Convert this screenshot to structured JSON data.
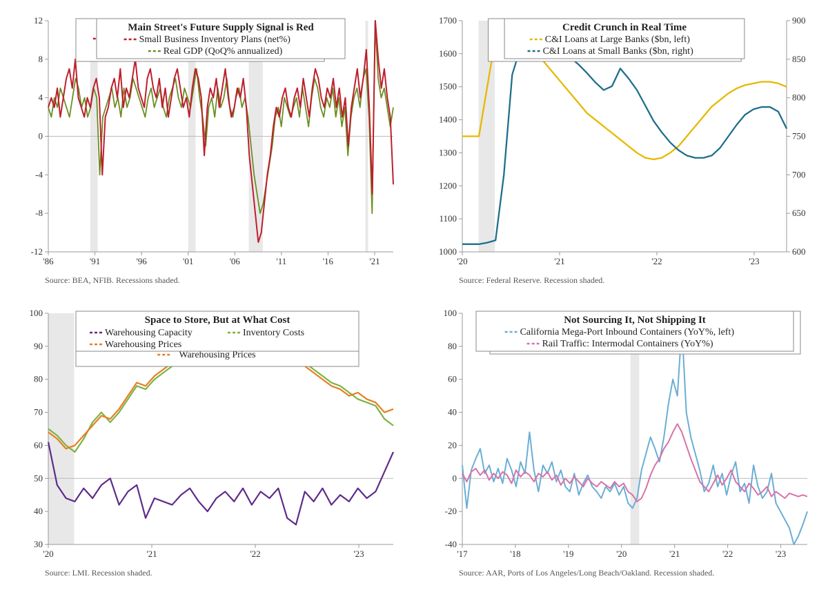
{
  "chart1": {
    "type": "line",
    "title": "Main Street's Future Supply Signal is Red",
    "legend": [
      {
        "label": "Small Business Inventory Plans (net%)",
        "color": "#be1e2d",
        "dash": "4,3"
      },
      {
        "label": "Real GDP (QoQ% annualized)",
        "color": "#6b8e23",
        "dash": "4,3"
      }
    ],
    "x_ticks": [
      "'86",
      "'91",
      "'96",
      "'01",
      "'06",
      "'11",
      "'16",
      "'21"
    ],
    "y_ticks": [
      -12,
      -8,
      -4,
      0,
      4,
      8,
      12
    ],
    "ylim": [
      -12,
      12
    ],
    "xlim": [
      0,
      37
    ],
    "recessions": [
      [
        4.5,
        5.3
      ],
      [
        15,
        15.8
      ],
      [
        21.5,
        23
      ],
      [
        34,
        34.3
      ]
    ],
    "series1_color": "#be1e2d",
    "series2_color": "#6b8e23",
    "grid_color": "#cccccc",
    "axis_color": "#999",
    "bg": "#ffffff",
    "title_fontsize": 15,
    "legend_fontsize": 14,
    "tick_fontsize": 13,
    "source": "Source: BEA, NFIB. Recessions shaded.",
    "s1": [
      3,
      4,
      3,
      5,
      2,
      4,
      6,
      7,
      5,
      8,
      4,
      3,
      2,
      4,
      3,
      5,
      6,
      4,
      -4,
      2,
      3,
      5,
      6,
      4,
      7,
      3,
      5,
      4,
      6,
      8,
      5,
      4,
      3,
      6,
      7,
      5,
      4,
      6,
      3,
      5,
      2,
      4,
      6,
      7,
      5,
      3,
      4,
      2,
      5,
      7,
      6,
      4,
      -2,
      3,
      5,
      4,
      6,
      3,
      5,
      7,
      4,
      2,
      3,
      5,
      4,
      6,
      3,
      -2,
      -5,
      -8,
      -11,
      -10,
      -7,
      -4,
      -2,
      1,
      3,
      2,
      4,
      5,
      3,
      2,
      4,
      5,
      3,
      6,
      4,
      2,
      5,
      7,
      6,
      4,
      3,
      5,
      4,
      6,
      3,
      5,
      2,
      4,
      -1,
      3,
      5,
      7,
      4,
      6,
      9,
      3,
      -6,
      12,
      8,
      5,
      7,
      4,
      2,
      -5
    ],
    "s2": [
      3,
      2,
      4,
      3,
      5,
      4,
      3,
      2,
      4,
      6,
      5,
      3,
      4,
      2,
      3,
      5,
      4,
      -4,
      2,
      3,
      4,
      5,
      3,
      4,
      2,
      5,
      3,
      4,
      6,
      5,
      4,
      3,
      2,
      4,
      5,
      3,
      4,
      5,
      3,
      2,
      4,
      5,
      6,
      4,
      3,
      5,
      4,
      3,
      5,
      7,
      4,
      2,
      -1,
      3,
      4,
      2,
      5,
      3,
      4,
      6,
      3,
      2,
      4,
      5,
      3,
      4,
      2,
      -1,
      -4,
      -6,
      -8,
      -7,
      -5,
      -3,
      -1,
      2,
      3,
      1,
      4,
      3,
      2,
      3,
      4,
      2,
      5,
      3,
      1,
      4,
      6,
      5,
      3,
      2,
      4,
      3,
      5,
      2,
      4,
      1,
      3,
      -2,
      2,
      4,
      5,
      3,
      6,
      7,
      2,
      -8,
      12,
      6,
      4,
      5,
      3,
      1,
      3
    ]
  },
  "chart2": {
    "type": "line-dual",
    "title": "Credit Crunch in Real Time",
    "legend": [
      {
        "label": "C&I Loans at Large Banks ($bn, left)",
        "color": "#e6b800",
        "dash": "4,3"
      },
      {
        "label": "C&I Loans at Small Banks ($bn, right)",
        "color": "#1f6f8b",
        "dash": "4,3"
      }
    ],
    "x_ticks": [
      "'20",
      "'21",
      "'22",
      "'23"
    ],
    "y_ticks_left": [
      1000,
      1100,
      1200,
      1300,
      1400,
      1500,
      1600,
      1700
    ],
    "y_ticks_right": [
      600,
      650,
      700,
      750,
      800,
      850,
      900
    ],
    "ylim_left": [
      1000,
      1700
    ],
    "ylim_right": [
      600,
      900
    ],
    "xlim": [
      0,
      40
    ],
    "recessions": [
      [
        2,
        4
      ]
    ],
    "series1_color": "#e6b800",
    "series2_color": "#1f6f8b",
    "source": "Source:  Federal Reserve. Recession shaded.",
    "s1": [
      1350,
      1350,
      1350,
      1500,
      1650,
      1680,
      1670,
      1650,
      1630,
      1600,
      1570,
      1540,
      1510,
      1480,
      1450,
      1420,
      1400,
      1380,
      1360,
      1340,
      1320,
      1300,
      1285,
      1280,
      1285,
      1300,
      1320,
      1350,
      1380,
      1410,
      1440,
      1460,
      1480,
      1495,
      1505,
      1510,
      1515,
      1515,
      1510,
      1500
    ],
    "s2": [
      610,
      610,
      610,
      612,
      615,
      700,
      830,
      865,
      870,
      870,
      868,
      865,
      860,
      852,
      843,
      832,
      820,
      810,
      815,
      838,
      825,
      810,
      790,
      770,
      755,
      742,
      732,
      725,
      722,
      722,
      725,
      735,
      750,
      765,
      778,
      785,
      788,
      788,
      782,
      760
    ]
  },
  "chart3": {
    "type": "line",
    "title": "Space to Store, But at What Cost",
    "legend": [
      {
        "label": "Warehousing Capacity",
        "color": "#5e2b8a",
        "dash": "4,3"
      },
      {
        "label": "Inventory Costs",
        "color": "#7cb342",
        "dash": "4,3"
      },
      {
        "label": "Warehousing Prices",
        "color": "#e67e22",
        "dash": "4,3"
      }
    ],
    "x_ticks": [
      "'20",
      "'21",
      "'22",
      "'23"
    ],
    "y_ticks": [
      30,
      40,
      50,
      60,
      70,
      80,
      90,
      100
    ],
    "ylim": [
      30,
      100
    ],
    "xlim": [
      0,
      40
    ],
    "recessions": [
      [
        0,
        3
      ]
    ],
    "s1_color": "#5e2b8a",
    "s2_color": "#7cb342",
    "s3_color": "#e67e22",
    "source": "Source: LMI. Recession shaded.",
    "s1": [
      61,
      48,
      44,
      43,
      47,
      44,
      48,
      50,
      42,
      46,
      48,
      38,
      44,
      43,
      42,
      45,
      47,
      43,
      40,
      44,
      46,
      43,
      47,
      42,
      46,
      44,
      47,
      38,
      36,
      46,
      43,
      47,
      42,
      45,
      43,
      47,
      44,
      46,
      52,
      58
    ],
    "s2": [
      65,
      63,
      60,
      58,
      62,
      67,
      70,
      67,
      70,
      74,
      78,
      77,
      80,
      82,
      84,
      85,
      86,
      87,
      85,
      86,
      87,
      88,
      86,
      89,
      90,
      88,
      91,
      88,
      86,
      85,
      83,
      81,
      79,
      78,
      76,
      74,
      73,
      72,
      68,
      66
    ],
    "s3": [
      64,
      62,
      59,
      60,
      63,
      66,
      69,
      68,
      71,
      75,
      79,
      78,
      81,
      83,
      85,
      86,
      87,
      88,
      86,
      87,
      88,
      89,
      87,
      90,
      91,
      89,
      90,
      87,
      85,
      84,
      82,
      80,
      78,
      77,
      75,
      76,
      74,
      73,
      70,
      71
    ]
  },
  "chart4": {
    "type": "line",
    "title": "Not Sourcing It, Not Shipping It",
    "legend": [
      {
        "label": "California Mega-Port Inbound Containers (YoY%, left)",
        "color": "#6aaed6",
        "dash": "4,3"
      },
      {
        "label": "Rail Traffic: Intermodal Containers (YoY%)",
        "color": "#d672a9",
        "dash": "4,3"
      }
    ],
    "x_ticks": [
      "'17",
      "'18",
      "'19",
      "'20",
      "'21",
      "'22",
      "'23"
    ],
    "y_ticks": [
      -40,
      -20,
      0,
      20,
      40,
      60,
      80,
      100
    ],
    "ylim": [
      -40,
      100
    ],
    "xlim": [
      0,
      78
    ],
    "recessions": [
      [
        38,
        40
      ]
    ],
    "s1_color": "#6aaed6",
    "s2_color": "#d672a9",
    "source": "Source: AAR, Ports of Los Angeles/Long Beach/Oakland. Recession shaded.",
    "s1": [
      8,
      -18,
      5,
      12,
      18,
      3,
      8,
      -2,
      6,
      -3,
      12,
      5,
      -5,
      10,
      3,
      28,
      5,
      -8,
      8,
      3,
      10,
      -2,
      5,
      -5,
      -8,
      3,
      -10,
      -3,
      2,
      -5,
      -8,
      -12,
      -5,
      -8,
      -3,
      -10,
      -5,
      -15,
      -18,
      -12,
      5,
      15,
      25,
      18,
      10,
      25,
      45,
      60,
      50,
      92,
      40,
      25,
      15,
      5,
      -8,
      -3,
      8,
      -5,
      3,
      -10,
      2,
      10,
      -8,
      -3,
      -15,
      8,
      -5,
      -12,
      -8,
      3,
      -15,
      -20,
      -25,
      -30,
      -40,
      -35,
      -28,
      -20
    ],
    "s2": [
      3,
      -2,
      4,
      6,
      2,
      5,
      -1,
      3,
      0,
      4,
      2,
      -3,
      5,
      1,
      4,
      2,
      -2,
      3,
      1,
      4,
      -1,
      2,
      -4,
      0,
      -3,
      1,
      -2,
      -5,
      0,
      -3,
      -5,
      -2,
      -4,
      -6,
      -2,
      -5,
      -3,
      -8,
      -10,
      -14,
      -12,
      -6,
      2,
      8,
      12,
      18,
      22,
      28,
      33,
      28,
      20,
      12,
      5,
      -2,
      -5,
      -8,
      -3,
      2,
      -4,
      0,
      5,
      -2,
      -5,
      -8,
      -3,
      -6,
      -10,
      -8,
      -5,
      -11,
      -8,
      -10,
      -12,
      -9,
      -10,
      -11,
      -10,
      -11
    ]
  }
}
